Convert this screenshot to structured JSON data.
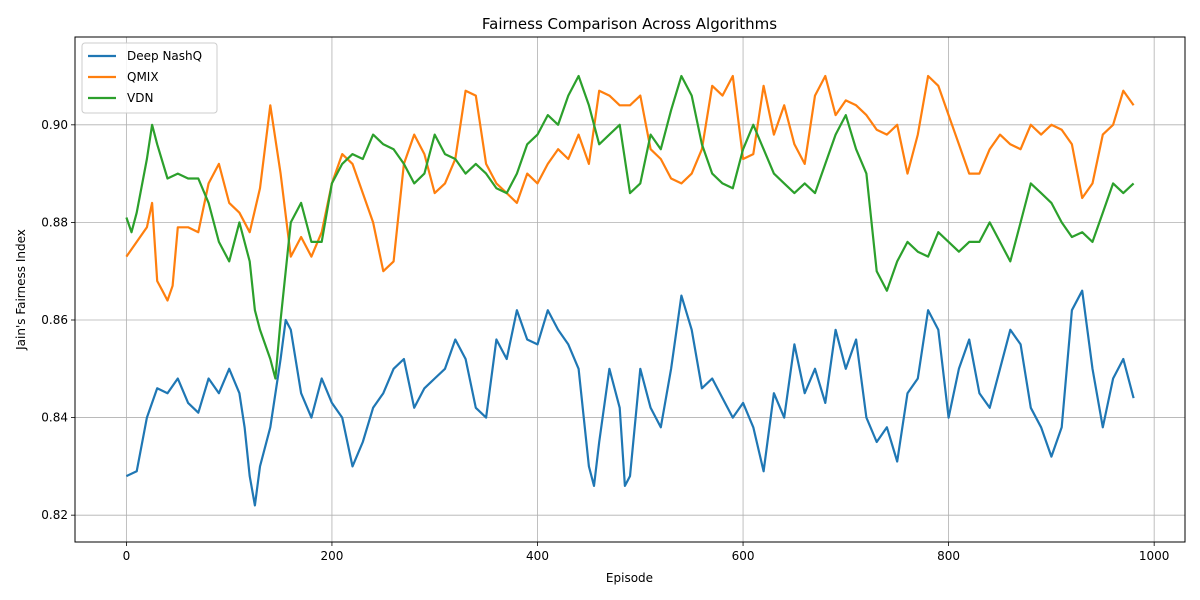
{
  "chart_data": {
    "type": "line",
    "title": "Fairness Comparison Across Algorithms",
    "xlabel": "Episode",
    "ylabel": "Jain's Fairness Index",
    "xlim": [
      -50,
      1030
    ],
    "ylim": [
      0.8145,
      0.918
    ],
    "xticks": [
      0,
      200,
      400,
      600,
      800,
      1000
    ],
    "xtick_labels": [
      "0",
      "200",
      "400",
      "600",
      "800",
      "1000"
    ],
    "yticks": [
      0.82,
      0.84,
      0.86,
      0.88,
      0.9
    ],
    "ytick_labels": [
      "0.82",
      "0.84",
      "0.86",
      "0.88",
      "0.90"
    ],
    "grid": true,
    "legend_position": "upper-left",
    "series": [
      {
        "name": "Deep NashQ",
        "color": "#1f77b4",
        "x": [
          0,
          10,
          20,
          30,
          40,
          50,
          60,
          70,
          80,
          90,
          100,
          110,
          115,
          120,
          125,
          130,
          140,
          150,
          155,
          160,
          170,
          180,
          190,
          200,
          210,
          220,
          230,
          240,
          250,
          260,
          270,
          280,
          290,
          300,
          310,
          320,
          330,
          340,
          350,
          360,
          370,
          380,
          390,
          400,
          410,
          420,
          430,
          440,
          450,
          455,
          460,
          470,
          480,
          485,
          490,
          500,
          510,
          520,
          530,
          540,
          550,
          560,
          570,
          580,
          590,
          600,
          610,
          620,
          630,
          640,
          650,
          660,
          670,
          680,
          690,
          700,
          710,
          720,
          730,
          740,
          750,
          760,
          770,
          780,
          790,
          800,
          810,
          820,
          830,
          840,
          850,
          860,
          870,
          880,
          890,
          900,
          910,
          920,
          930,
          940,
          950,
          960,
          970,
          980
        ],
        "y": [
          0.828,
          0.829,
          0.84,
          0.846,
          0.845,
          0.848,
          0.843,
          0.841,
          0.848,
          0.845,
          0.85,
          0.845,
          0.838,
          0.828,
          0.822,
          0.83,
          0.838,
          0.852,
          0.86,
          0.858,
          0.845,
          0.84,
          0.848,
          0.843,
          0.84,
          0.83,
          0.835,
          0.842,
          0.845,
          0.85,
          0.852,
          0.842,
          0.846,
          0.848,
          0.85,
          0.856,
          0.852,
          0.842,
          0.84,
          0.856,
          0.852,
          0.862,
          0.856,
          0.855,
          0.862,
          0.858,
          0.855,
          0.85,
          0.83,
          0.826,
          0.835,
          0.85,
          0.842,
          0.826,
          0.828,
          0.85,
          0.842,
          0.838,
          0.85,
          0.865,
          0.858,
          0.846,
          0.848,
          0.844,
          0.84,
          0.843,
          0.838,
          0.829,
          0.845,
          0.84,
          0.855,
          0.845,
          0.85,
          0.843,
          0.858,
          0.85,
          0.856,
          0.84,
          0.835,
          0.838,
          0.831,
          0.845,
          0.848,
          0.862,
          0.858,
          0.84,
          0.85,
          0.856,
          0.845,
          0.842,
          0.85,
          0.858,
          0.855,
          0.842,
          0.838,
          0.832,
          0.838,
          0.862,
          0.866,
          0.85,
          0.838,
          0.848,
          0.852,
          0.844
        ]
      },
      {
        "name": "QMIX",
        "color": "#ff7f0e",
        "x": [
          0,
          10,
          20,
          25,
          30,
          35,
          40,
          45,
          50,
          60,
          70,
          80,
          90,
          100,
          110,
          120,
          130,
          140,
          150,
          160,
          170,
          180,
          190,
          200,
          210,
          220,
          230,
          240,
          250,
          260,
          270,
          280,
          290,
          300,
          310,
          320,
          330,
          340,
          350,
          360,
          370,
          380,
          390,
          400,
          410,
          420,
          430,
          440,
          450,
          460,
          470,
          480,
          490,
          500,
          510,
          520,
          530,
          540,
          550,
          560,
          570,
          580,
          590,
          600,
          610,
          620,
          630,
          640,
          650,
          660,
          670,
          680,
          690,
          700,
          710,
          720,
          730,
          740,
          750,
          760,
          770,
          780,
          790,
          800,
          810,
          820,
          830,
          840,
          850,
          860,
          870,
          880,
          890,
          900,
          910,
          920,
          930,
          940,
          950,
          960,
          970,
          980
        ],
        "y": [
          0.873,
          0.876,
          0.879,
          0.884,
          0.868,
          0.866,
          0.864,
          0.867,
          0.879,
          0.879,
          0.878,
          0.888,
          0.892,
          0.884,
          0.882,
          0.878,
          0.887,
          0.904,
          0.89,
          0.873,
          0.877,
          0.873,
          0.878,
          0.888,
          0.894,
          0.892,
          0.886,
          0.88,
          0.87,
          0.872,
          0.892,
          0.898,
          0.894,
          0.886,
          0.888,
          0.893,
          0.907,
          0.906,
          0.892,
          0.888,
          0.886,
          0.884,
          0.89,
          0.888,
          0.892,
          0.895,
          0.893,
          0.898,
          0.892,
          0.907,
          0.906,
          0.904,
          0.904,
          0.906,
          0.895,
          0.893,
          0.889,
          0.888,
          0.89,
          0.895,
          0.908,
          0.906,
          0.91,
          0.893,
          0.894,
          0.908,
          0.898,
          0.904,
          0.896,
          0.892,
          0.906,
          0.91,
          0.902,
          0.905,
          0.904,
          0.902,
          0.899,
          0.898,
          0.9,
          0.89,
          0.898,
          0.91,
          0.908,
          0.902,
          0.896,
          0.89,
          0.89,
          0.895,
          0.898,
          0.896,
          0.895,
          0.9,
          0.898,
          0.9,
          0.899,
          0.896,
          0.885,
          0.888,
          0.898,
          0.9,
          0.907,
          0.904
        ]
      },
      {
        "name": "VDN",
        "color": "#2ca02c",
        "x": [
          0,
          5,
          10,
          20,
          25,
          30,
          40,
          50,
          60,
          70,
          80,
          90,
          100,
          110,
          120,
          125,
          130,
          140,
          145,
          150,
          160,
          170,
          180,
          190,
          200,
          210,
          220,
          230,
          240,
          250,
          260,
          270,
          280,
          290,
          300,
          310,
          320,
          330,
          340,
          350,
          360,
          370,
          380,
          390,
          400,
          410,
          420,
          430,
          440,
          450,
          460,
          470,
          480,
          490,
          500,
          510,
          520,
          530,
          540,
          550,
          560,
          570,
          580,
          590,
          600,
          610,
          620,
          630,
          640,
          650,
          660,
          670,
          680,
          690,
          700,
          710,
          720,
          730,
          740,
          750,
          760,
          770,
          780,
          790,
          800,
          810,
          820,
          830,
          840,
          850,
          860,
          870,
          880,
          890,
          900,
          910,
          920,
          930,
          940,
          950,
          960,
          970,
          980
        ],
        "y": [
          0.881,
          0.878,
          0.882,
          0.893,
          0.9,
          0.896,
          0.889,
          0.89,
          0.889,
          0.889,
          0.884,
          0.876,
          0.872,
          0.88,
          0.872,
          0.862,
          0.858,
          0.852,
          0.848,
          0.86,
          0.88,
          0.884,
          0.876,
          0.876,
          0.888,
          0.892,
          0.894,
          0.893,
          0.898,
          0.896,
          0.895,
          0.892,
          0.888,
          0.89,
          0.898,
          0.894,
          0.893,
          0.89,
          0.892,
          0.89,
          0.887,
          0.886,
          0.89,
          0.896,
          0.898,
          0.902,
          0.9,
          0.906,
          0.91,
          0.904,
          0.896,
          0.898,
          0.9,
          0.886,
          0.888,
          0.898,
          0.895,
          0.903,
          0.91,
          0.906,
          0.896,
          0.89,
          0.888,
          0.887,
          0.895,
          0.9,
          0.895,
          0.89,
          0.888,
          0.886,
          0.888,
          0.886,
          0.892,
          0.898,
          0.902,
          0.895,
          0.89,
          0.87,
          0.866,
          0.872,
          0.876,
          0.874,
          0.873,
          0.878,
          0.876,
          0.874,
          0.876,
          0.876,
          0.88,
          0.876,
          0.872,
          0.88,
          0.888,
          0.886,
          0.884,
          0.88,
          0.877,
          0.878,
          0.876,
          0.882,
          0.888,
          0.886,
          0.888
        ]
      }
    ]
  }
}
